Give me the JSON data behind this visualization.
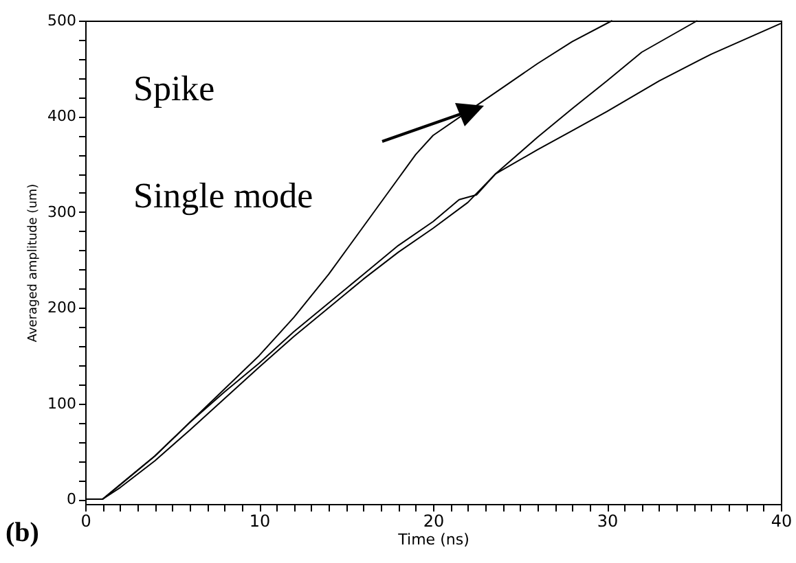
{
  "chart_data": {
    "type": "line",
    "xlabel": "Time (ns)",
    "ylabel": "Averaged amplitude (um)",
    "xlim": [
      0,
      40
    ],
    "ylim": [
      -5,
      500
    ],
    "xticks": [
      0,
      {
        "value": 1,
        "label": null
      },
      {
        "value": 2,
        "label": null
      },
      {
        "value": 3,
        "label": null
      },
      {
        "value": 4,
        "label": null
      },
      {
        "value": 5,
        "label": null
      },
      {
        "value": 6,
        "label": null
      },
      {
        "value": 7,
        "label": null
      },
      {
        "value": 8,
        "label": null
      },
      {
        "value": 9,
        "label": null
      },
      10,
      {
        "value": 11,
        "label": null
      },
      {
        "value": 12,
        "label": null
      },
      {
        "value": 13,
        "label": null
      },
      {
        "value": 14,
        "label": null
      },
      {
        "value": 15,
        "label": null
      },
      {
        "value": 16,
        "label": null
      },
      {
        "value": 17,
        "label": null
      },
      {
        "value": 18,
        "label": null
      },
      {
        "value": 19,
        "label": null
      },
      20,
      {
        "value": 21,
        "label": null
      },
      {
        "value": 22,
        "label": null
      },
      {
        "value": 23,
        "label": null
      },
      {
        "value": 24,
        "label": null
      },
      {
        "value": 25,
        "label": null
      },
      {
        "value": 26,
        "label": null
      },
      {
        "value": 27,
        "label": null
      },
      {
        "value": 28,
        "label": null
      },
      {
        "value": 29,
        "label": null
      },
      30,
      {
        "value": 31,
        "label": null
      },
      {
        "value": 32,
        "label": null
      },
      {
        "value": 33,
        "label": null
      },
      {
        "value": 34,
        "label": null
      },
      {
        "value": 35,
        "label": null
      },
      {
        "value": 36,
        "label": null
      },
      {
        "value": 37,
        "label": null
      },
      {
        "value": 38,
        "label": null
      },
      {
        "value": 39,
        "label": null
      },
      40
    ],
    "yticks": [
      0,
      {
        "value": 20,
        "label": null
      },
      {
        "value": 40,
        "label": null
      },
      {
        "value": 60,
        "label": null
      },
      {
        "value": 80,
        "label": null
      },
      100,
      {
        "value": 120,
        "label": null
      },
      {
        "value": 140,
        "label": null
      },
      {
        "value": 160,
        "label": null
      },
      {
        "value": 180,
        "label": null
      },
      200,
      {
        "value": 220,
        "label": null
      },
      {
        "value": 240,
        "label": null
      },
      {
        "value": 260,
        "label": null
      },
      {
        "value": 280,
        "label": null
      },
      300,
      {
        "value": 320,
        "label": null
      },
      {
        "value": 340,
        "label": null
      },
      {
        "value": 360,
        "label": null
      },
      {
        "value": 380,
        "label": null
      },
      400,
      {
        "value": 420,
        "label": null
      },
      {
        "value": 440,
        "label": null
      },
      {
        "value": 460,
        "label": null
      },
      {
        "value": 480,
        "label": null
      },
      500
    ],
    "grid": false,
    "marker": "none",
    "line_style": "solid",
    "annotations": [
      "Spike",
      "Single mode",
      "(b)"
    ],
    "series": [
      {
        "color": "#000000",
        "x": [
          0,
          1,
          2,
          4,
          6,
          8,
          10,
          12,
          14,
          16,
          18,
          19,
          20,
          22,
          24,
          26,
          28,
          30.3
        ],
        "values": [
          0,
          0,
          15,
          45,
          80,
          115,
          150,
          190,
          235,
          285,
          335,
          360,
          380,
          405,
          430,
          455,
          478,
          500
        ]
      },
      {
        "color": "#000000",
        "x": [
          0,
          1,
          2,
          4,
          6,
          8,
          10,
          12,
          14,
          16,
          18,
          20,
          21.5,
          22.5,
          23.6,
          26,
          28,
          30,
          32,
          35.2
        ],
        "values": [
          0,
          0,
          15,
          45,
          80,
          112,
          142,
          175,
          205,
          235,
          265,
          290,
          313,
          318,
          340,
          378,
          408,
          437,
          467,
          500
        ]
      },
      {
        "color": "#000000",
        "x": [
          0,
          1,
          2,
          4,
          6,
          8,
          10,
          12,
          14,
          16,
          18,
          20,
          22,
          23.6,
          26,
          28,
          30,
          33,
          36,
          40
        ],
        "values": [
          0,
          0,
          12,
          40,
          72,
          105,
          138,
          170,
          200,
          230,
          258,
          283,
          310,
          340,
          365,
          385,
          405,
          437,
          465,
          497
        ]
      }
    ]
  }
}
